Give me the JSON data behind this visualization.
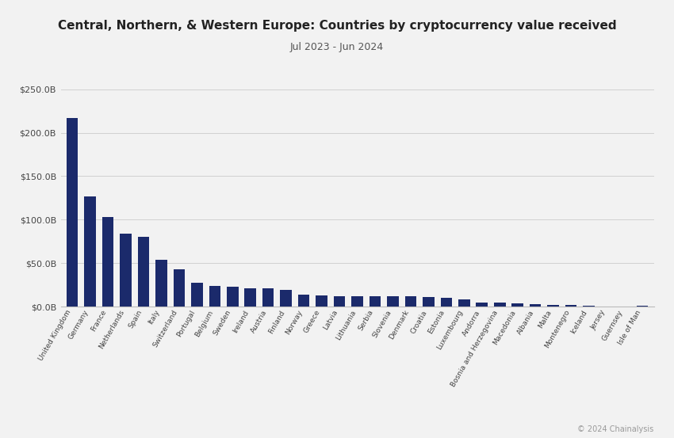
{
  "title": "Central, Northern, & Western Europe: Countries by cryptocurrency value received",
  "subtitle": "Jul 2023 - Jun 2024",
  "copyright": "© 2024 Chainalysis",
  "categories": [
    "United Kingdom",
    "Germany",
    "France",
    "Netherlands",
    "Spain",
    "Italy",
    "Switzerland",
    "Portugal",
    "Belgium",
    "Sweden",
    "Ireland",
    "Austria",
    "Finland",
    "Norway",
    "Greece",
    "Latvia",
    "Lithuania",
    "Serbia",
    "Slovenia",
    "Denmark",
    "Croatia",
    "Estonia",
    "Luxembourg",
    "Andorra",
    "Bosnia and Herzegovina",
    "Macedonia",
    "Albania",
    "Malta",
    "Montenegro",
    "Iceland",
    "Jersey",
    "Guernsey",
    "Isle of Man"
  ],
  "values": [
    217,
    127,
    103,
    84,
    80,
    54,
    43,
    27,
    24,
    23,
    21,
    21,
    19,
    14,
    13,
    12,
    12,
    12,
    12,
    12,
    11,
    10,
    8,
    5,
    5,
    4,
    3,
    2,
    1.5,
    1,
    0.5,
    0.3,
    0.8
  ],
  "bar_color": "#1b2a6b",
  "background_color": "#f2f2f2",
  "ylim": [
    0,
    262
  ],
  "yticks": [
    0,
    50,
    100,
    150,
    200,
    250
  ],
  "ytick_labels": [
    "$0.0B",
    "$50.0B",
    "$100.0B",
    "$150.0B",
    "$200.0B",
    "$250.0B"
  ]
}
